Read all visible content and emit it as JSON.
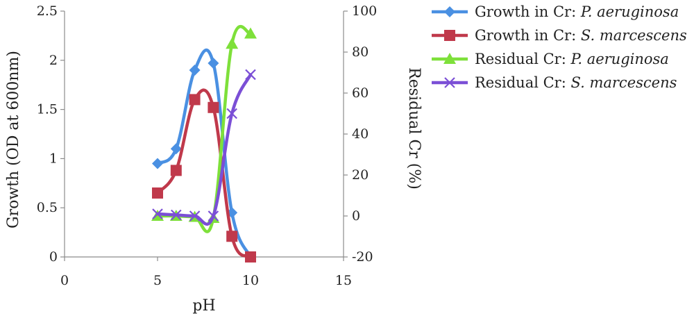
{
  "chart_data": {
    "type": "line",
    "xlabel": "pH",
    "ylabel": "Growth (OD at 600nm)",
    "y2label": "Residual Cr (%)",
    "xlim": [
      0,
      15
    ],
    "ylim": [
      0,
      2.5
    ],
    "y2lim": [
      -20,
      100
    ],
    "xticks": [
      0,
      5,
      10,
      15
    ],
    "yticks": [
      0,
      0.5,
      1,
      1.5,
      2,
      2.5
    ],
    "y2ticks": [
      -20,
      0,
      20,
      40,
      60,
      80,
      100
    ],
    "grid": false,
    "legend_position": "right",
    "series": [
      {
        "name_prefix": "Growth in Cr: ",
        "name_italic": "P. aeruginosa",
        "axis": "left",
        "color": "#4a90e2",
        "marker": "diamond",
        "x": [
          5,
          6,
          7,
          8,
          9,
          10
        ],
        "y": [
          0.95,
          1.1,
          1.9,
          1.97,
          0.45,
          0.0
        ]
      },
      {
        "name_prefix": "Growth in Cr: ",
        "name_italic": "S. marcescens",
        "axis": "left",
        "color": "#c0394b",
        "marker": "square",
        "x": [
          5,
          6,
          7,
          8,
          9,
          10
        ],
        "y": [
          0.65,
          0.88,
          1.6,
          1.52,
          0.21,
          0.0
        ]
      },
      {
        "name_prefix": "Residual Cr: ",
        "name_italic": "P. aeruginosa",
        "axis": "right",
        "color": "#7ee03a",
        "marker": "triangle",
        "x": [
          5,
          6,
          7,
          8,
          9,
          10
        ],
        "y": [
          0,
          0,
          -0.5,
          -1,
          84,
          89
        ]
      },
      {
        "name_prefix": "Residual Cr: ",
        "name_italic": "S. marcescens",
        "axis": "right",
        "color": "#7b4fd6",
        "marker": "x",
        "x": [
          5,
          6,
          7,
          8,
          9,
          10
        ],
        "y": [
          1,
          0.5,
          0,
          0,
          50,
          69
        ]
      }
    ]
  }
}
